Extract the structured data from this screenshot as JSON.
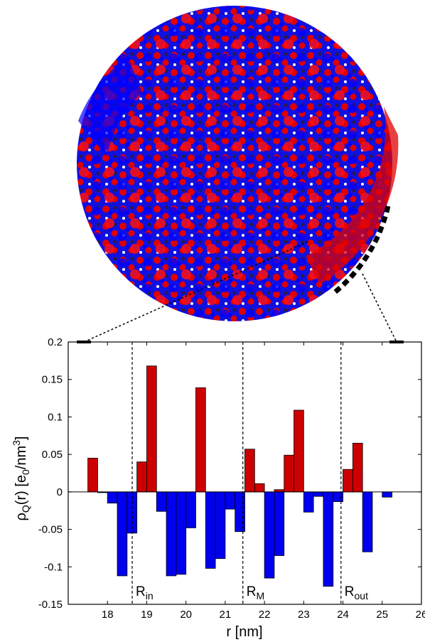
{
  "capsid_image": {
    "subject": "capsid-charge-density-rendering",
    "colors": {
      "positive": "#ff0000",
      "negative": "#0000ff",
      "background_dark": "#1a1a33"
    }
  },
  "chart_data": {
    "type": "bar",
    "xlabel_base": "r",
    "xlabel_unit": "[nm]",
    "ylabel_base": "ρ",
    "ylabel_sub": "Q",
    "ylabel_mid": "(r) [e",
    "ylabel_sub2": "0",
    "ylabel_unit": "/nm",
    "ylabel_sup": "3",
    "ylabel_end": "]",
    "xlim": [
      17,
      26
    ],
    "ylim": [
      -0.15,
      0.2
    ],
    "xticks": [
      18,
      19,
      20,
      21,
      22,
      23,
      24,
      25,
      26
    ],
    "yticks": [
      0.2,
      0.15,
      0.1,
      0.05,
      0,
      -0.05,
      -0.1,
      -0.15
    ],
    "ytick_labels": [
      "0.2",
      "0.15",
      "0.1",
      "0.05",
      "0",
      "-0.05",
      "-0.1",
      "-0.15"
    ],
    "bin_width": 0.25,
    "positive_bars": [
      {
        "x": 17.625,
        "value": 0.045
      },
      {
        "x": 18.875,
        "value": 0.04
      },
      {
        "x": 19.125,
        "value": 0.168
      },
      {
        "x": 20.375,
        "value": 0.139
      },
      {
        "x": 21.625,
        "value": 0.057
      },
      {
        "x": 21.875,
        "value": 0.011
      },
      {
        "x": 22.375,
        "value": 0.003
      },
      {
        "x": 22.625,
        "value": 0.049
      },
      {
        "x": 22.875,
        "value": 0.109
      },
      {
        "x": 24.125,
        "value": 0.03
      },
      {
        "x": 24.375,
        "value": 0.065
      }
    ],
    "negative_bars": [
      {
        "x": 17.875,
        "value": -0.001
      },
      {
        "x": 18.125,
        "value": -0.015
      },
      {
        "x": 18.375,
        "value": -0.112
      },
      {
        "x": 18.625,
        "value": -0.055
      },
      {
        "x": 19.375,
        "value": -0.026
      },
      {
        "x": 19.625,
        "value": -0.112
      },
      {
        "x": 19.875,
        "value": -0.11
      },
      {
        "x": 20.125,
        "value": -0.048
      },
      {
        "x": 20.625,
        "value": -0.102
      },
      {
        "x": 20.875,
        "value": -0.089
      },
      {
        "x": 21.125,
        "value": -0.023
      },
      {
        "x": 21.375,
        "value": -0.053
      },
      {
        "x": 22.125,
        "value": -0.115
      },
      {
        "x": 22.375,
        "value": -0.085
      },
      {
        "x": 23.125,
        "value": -0.027
      },
      {
        "x": 23.375,
        "value": -0.006
      },
      {
        "x": 23.625,
        "value": -0.126
      },
      {
        "x": 23.875,
        "value": -0.013
      },
      {
        "x": 24.625,
        "value": -0.08
      },
      {
        "x": 25.125,
        "value": -0.007
      }
    ],
    "vlines": [
      {
        "x": 18.63,
        "base": "R",
        "sub": "in"
      },
      {
        "x": 21.45,
        "base": "R",
        "sub": "M"
      },
      {
        "x": 23.95,
        "base": "R",
        "sub": "out"
      }
    ],
    "colors": {
      "positive": "#cc0000",
      "negative": "#0000ee",
      "edge": "#000000"
    },
    "grid": false
  }
}
